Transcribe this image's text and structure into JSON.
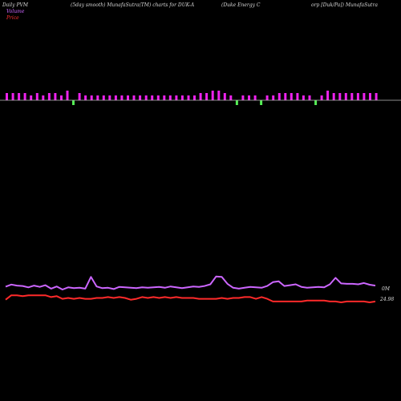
{
  "header": {
    "title_left": "Daily PVM",
    "title_mid": "(5day smooth) MunafaSutra(TM) charts for DUK-A",
    "title_right_a": "(Duke  Energy  C",
    "title_right_b": "orp [Duk/Pa]) MunafaSutra"
  },
  "legend": {
    "volume": "Volume",
    "price": "Price"
  },
  "colors": {
    "background": "#000000",
    "volume_up": "#ee22ee",
    "volume_down": "#55ee55",
    "volume_line": "#cc66ff",
    "price_line": "#ff2a2a",
    "baseline": "#bbbbbb",
    "text": "#d8d8d8"
  },
  "chart_data": {
    "type": "bar",
    "volume_bars": [
      {
        "h": 3,
        "dir": "up"
      },
      {
        "h": 3,
        "dir": "up"
      },
      {
        "h": 3,
        "dir": "up"
      },
      {
        "h": 3,
        "dir": "up"
      },
      {
        "h": 2,
        "dir": "up"
      },
      {
        "h": 3,
        "dir": "up"
      },
      {
        "h": 2,
        "dir": "up"
      },
      {
        "h": 3,
        "dir": "up"
      },
      {
        "h": 3,
        "dir": "up"
      },
      {
        "h": 2,
        "dir": "up"
      },
      {
        "h": 4,
        "dir": "up"
      },
      {
        "h": 2,
        "dir": "down"
      },
      {
        "h": 3,
        "dir": "up"
      },
      {
        "h": 2,
        "dir": "up"
      },
      {
        "h": 2,
        "dir": "up"
      },
      {
        "h": 2,
        "dir": "up"
      },
      {
        "h": 2,
        "dir": "up"
      },
      {
        "h": 2,
        "dir": "up"
      },
      {
        "h": 2,
        "dir": "up"
      },
      {
        "h": 2,
        "dir": "up"
      },
      {
        "h": 2,
        "dir": "up"
      },
      {
        "h": 2,
        "dir": "up"
      },
      {
        "h": 2,
        "dir": "up"
      },
      {
        "h": 2,
        "dir": "up"
      },
      {
        "h": 2,
        "dir": "up"
      },
      {
        "h": 2,
        "dir": "up"
      },
      {
        "h": 2,
        "dir": "up"
      },
      {
        "h": 2,
        "dir": "up"
      },
      {
        "h": 2,
        "dir": "up"
      },
      {
        "h": 2,
        "dir": "up"
      },
      {
        "h": 2,
        "dir": "up"
      },
      {
        "h": 2,
        "dir": "up"
      },
      {
        "h": 3,
        "dir": "up"
      },
      {
        "h": 3,
        "dir": "up"
      },
      {
        "h": 4,
        "dir": "up"
      },
      {
        "h": 4,
        "dir": "up"
      },
      {
        "h": 3,
        "dir": "up"
      },
      {
        "h": 2,
        "dir": "up"
      },
      {
        "h": 2,
        "dir": "down"
      },
      {
        "h": 2,
        "dir": "up"
      },
      {
        "h": 2,
        "dir": "up"
      },
      {
        "h": 2,
        "dir": "up"
      },
      {
        "h": 2,
        "dir": "down"
      },
      {
        "h": 2,
        "dir": "up"
      },
      {
        "h": 2,
        "dir": "up"
      },
      {
        "h": 3,
        "dir": "up"
      },
      {
        "h": 3,
        "dir": "up"
      },
      {
        "h": 3,
        "dir": "up"
      },
      {
        "h": 3,
        "dir": "up"
      },
      {
        "h": 2,
        "dir": "up"
      },
      {
        "h": 2,
        "dir": "up"
      },
      {
        "h": 2,
        "dir": "down"
      },
      {
        "h": 2,
        "dir": "up"
      },
      {
        "h": 4,
        "dir": "up"
      },
      {
        "h": 3,
        "dir": "up"
      },
      {
        "h": 3,
        "dir": "up"
      },
      {
        "h": 3,
        "dir": "up"
      },
      {
        "h": 3,
        "dir": "up"
      },
      {
        "h": 3,
        "dir": "up"
      },
      {
        "h": 3,
        "dir": "up"
      },
      {
        "h": 3,
        "dir": "up"
      },
      {
        "h": 3,
        "dir": "up"
      }
    ],
    "volume_line": [
      6.5,
      7.5,
      7.0,
      6.8,
      6.2,
      7.0,
      6.4,
      7.2,
      5.6,
      6.6,
      5.2,
      6.2,
      5.8,
      6.0,
      5.6,
      11.0,
      6.6,
      5.8,
      6.0,
      5.4,
      6.4,
      6.2,
      6.0,
      5.8,
      6.2,
      6.0,
      6.2,
      6.4,
      6.0,
      6.6,
      6.2,
      5.8,
      6.2,
      6.6,
      6.4,
      6.8,
      7.6,
      11.2,
      11.0,
      7.8,
      6.0,
      5.6,
      6.0,
      6.4,
      6.2,
      6.0,
      6.8,
      8.6,
      9.0,
      6.8,
      7.2,
      7.6,
      6.4,
      6.0,
      6.2,
      6.4,
      6.2,
      7.6,
      10.6,
      8.0,
      7.8,
      7.8,
      7.6,
      8.2,
      7.4,
      7.0
    ],
    "price_line": [
      24.95,
      25.0,
      25.0,
      24.99,
      25.0,
      25.0,
      25.0,
      25.0,
      24.98,
      24.99,
      24.96,
      24.97,
      24.96,
      24.97,
      24.96,
      24.96,
      24.97,
      24.97,
      24.98,
      24.97,
      24.98,
      24.97,
      24.95,
      24.96,
      24.98,
      24.97,
      24.98,
      24.97,
      24.98,
      24.97,
      24.98,
      24.97,
      24.97,
      24.97,
      24.96,
      24.96,
      24.96,
      24.96,
      24.97,
      24.96,
      24.97,
      24.97,
      24.98,
      24.98,
      24.96,
      24.98,
      24.96,
      24.93,
      24.93,
      24.93,
      24.93,
      24.93,
      24.93,
      24.94,
      24.94,
      24.94,
      24.94,
      24.93,
      24.93,
      24.92,
      24.93,
      24.93,
      24.93,
      24.93,
      24.92,
      24.93
    ],
    "volume_label": "0M",
    "price_label": "24.98"
  }
}
